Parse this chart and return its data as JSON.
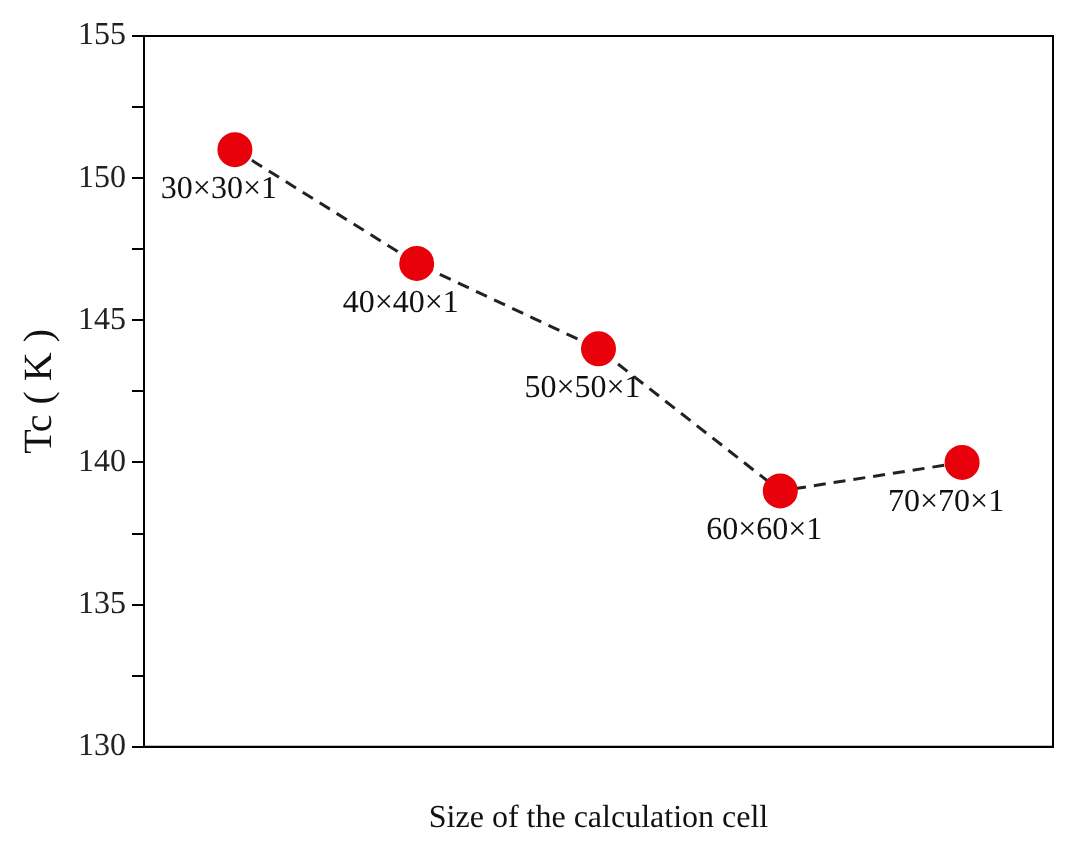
{
  "chart_data": {
    "type": "line",
    "xlabel": "Size of the calculation cell",
    "ylabel": "Tc ( K )",
    "categories": [
      "30×30×1",
      "40×40×1",
      "50×50×1",
      "60×60×1",
      "70×70×1"
    ],
    "series": [
      {
        "color": "#e8000b",
        "values": [
          151,
          147,
          144,
          139,
          140
        ]
      }
    ],
    "ylim": [
      130,
      155
    ],
    "yticks": [
      130,
      {
        "value": 132.5,
        "label": null
      },
      135,
      {
        "value": 137.5,
        "label": null
      },
      140,
      {
        "value": 142.5,
        "label": null
      },
      145,
      {
        "value": 147.5,
        "label": null
      },
      150,
      {
        "value": 152.5,
        "label": null
      },
      155
    ],
    "line_style": "dashed",
    "marker": "circle",
    "grid": false,
    "legend": false
  }
}
